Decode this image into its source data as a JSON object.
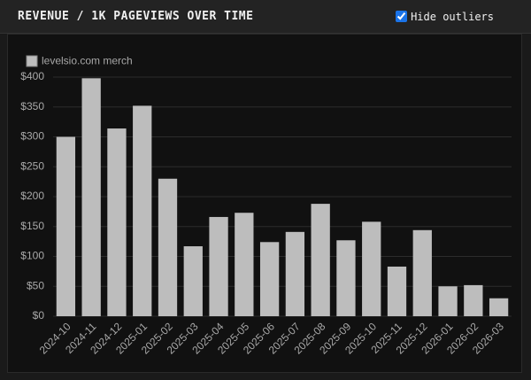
{
  "chart_data": {
    "type": "bar",
    "title": "REVENUE / 1K PAGEVIEWS OVER TIME",
    "categories": [
      "2024-10",
      "2024-11",
      "2024-12",
      "2025-01",
      "2025-02",
      "2025-03",
      "2025-04",
      "2025-05",
      "2025-06",
      "2025-07",
      "2025-08",
      "2025-09",
      "2025-10",
      "2025-11",
      "2025-12",
      "2026-01",
      "2026-02",
      "2026-03"
    ],
    "series": [
      {
        "name": "levelsio.com merch",
        "color": "#bdbdbd",
        "values": [
          300,
          398,
          314,
          352,
          230,
          117,
          166,
          173,
          124,
          141,
          188,
          127,
          158,
          83,
          144,
          50,
          52,
          30
        ]
      }
    ],
    "ylim": [
      0,
      400
    ],
    "yticks": [
      {
        "value": 0,
        "label": "$0"
      },
      {
        "value": 50,
        "label": "$50"
      },
      {
        "value": 100,
        "label": "$100"
      },
      {
        "value": 150,
        "label": "$150"
      },
      {
        "value": 200,
        "label": "$200"
      },
      {
        "value": 250,
        "label": "$250"
      },
      {
        "value": 300,
        "label": "$300"
      },
      {
        "value": 350,
        "label": "$350"
      },
      {
        "value": 400,
        "label": "$400"
      }
    ],
    "grid": true
  },
  "controls": {
    "hide_outliers": {
      "label": "Hide outliers",
      "checked": true
    }
  }
}
